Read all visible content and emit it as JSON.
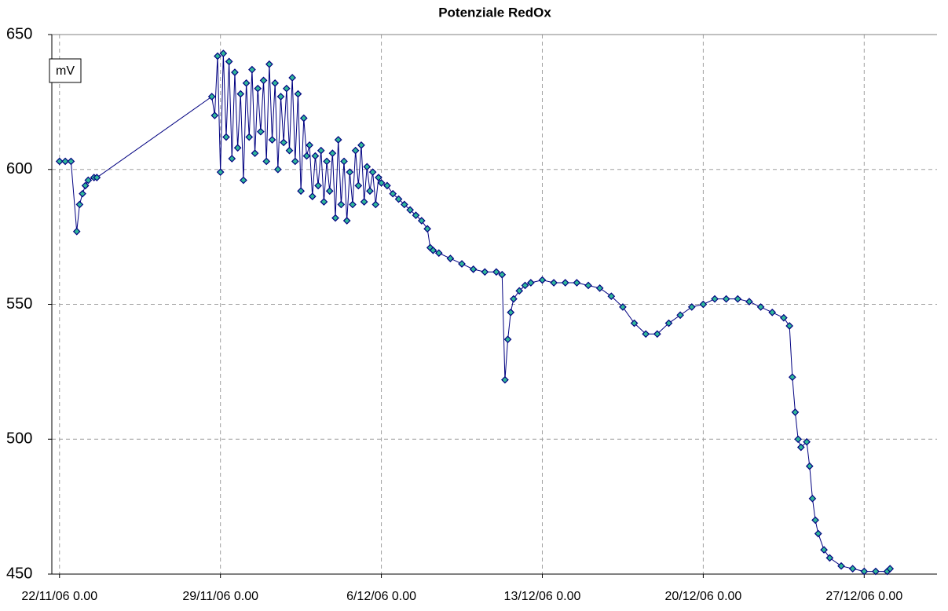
{
  "chart_data": {
    "type": "line",
    "title": "Potenziale RedOx",
    "y_label": "mV",
    "x": [
      "2006-11-22T00:00",
      "2006-11-22T06:00",
      "2006-11-22T12:00",
      "2006-11-22T18:00",
      "2006-11-22T21:00",
      "2006-11-23T00:00",
      "2006-11-23T03:00",
      "2006-11-23T06:00",
      "2006-11-23T12:00",
      "2006-11-23T15:00",
      "2006-11-28T15:00",
      "2006-11-28T18:00",
      "2006-11-28T21:00",
      "2006-11-29T00:00",
      "2006-11-29T03:00",
      "2006-11-29T06:00",
      "2006-11-29T09:00",
      "2006-11-29T12:00",
      "2006-11-29T15:00",
      "2006-11-29T18:00",
      "2006-11-29T21:00",
      "2006-11-30T00:00",
      "2006-11-30T03:00",
      "2006-11-30T06:00",
      "2006-11-30T09:00",
      "2006-11-30T12:00",
      "2006-11-30T15:00",
      "2006-11-30T18:00",
      "2006-11-30T21:00",
      "2006-12-01T00:00",
      "2006-12-01T03:00",
      "2006-12-01T06:00",
      "2006-12-01T09:00",
      "2006-12-01T12:00",
      "2006-12-01T15:00",
      "2006-12-01T18:00",
      "2006-12-01T21:00",
      "2006-12-02T00:00",
      "2006-12-02T03:00",
      "2006-12-02T06:00",
      "2006-12-02T09:00",
      "2006-12-02T12:00",
      "2006-12-02T15:00",
      "2006-12-02T18:00",
      "2006-12-02T21:00",
      "2006-12-03T00:00",
      "2006-12-03T03:00",
      "2006-12-03T06:00",
      "2006-12-03T09:00",
      "2006-12-03T12:00",
      "2006-12-03T15:00",
      "2006-12-03T18:00",
      "2006-12-03T21:00",
      "2006-12-04T00:00",
      "2006-12-04T03:00",
      "2006-12-04T06:00",
      "2006-12-04T09:00",
      "2006-12-04T12:00",
      "2006-12-04T15:00",
      "2006-12-04T18:00",
      "2006-12-04T21:00",
      "2006-12-05T00:00",
      "2006-12-05T03:00",
      "2006-12-05T06:00",
      "2006-12-05T09:00",
      "2006-12-05T12:00",
      "2006-12-05T15:00",
      "2006-12-05T18:00",
      "2006-12-05T21:00",
      "2006-12-06T00:00",
      "2006-12-06T06:00",
      "2006-12-06T12:00",
      "2006-12-06T18:00",
      "2006-12-07T00:00",
      "2006-12-07T06:00",
      "2006-12-07T12:00",
      "2006-12-07T18:00",
      "2006-12-08T00:00",
      "2006-12-08T03:00",
      "2006-12-08T06:00",
      "2006-12-08T12:00",
      "2006-12-09T00:00",
      "2006-12-09T12:00",
      "2006-12-10T00:00",
      "2006-12-10T12:00",
      "2006-12-11T00:00",
      "2006-12-11T06:00",
      "2006-12-11T09:00",
      "2006-12-11T12:00",
      "2006-12-11T15:00",
      "2006-12-11T18:00",
      "2006-12-12T00:00",
      "2006-12-12T06:00",
      "2006-12-12T12:00",
      "2006-12-13T00:00",
      "2006-12-13T12:00",
      "2006-12-14T00:00",
      "2006-12-14T12:00",
      "2006-12-15T00:00",
      "2006-12-15T12:00",
      "2006-12-16T00:00",
      "2006-12-16T12:00",
      "2006-12-17T00:00",
      "2006-12-17T12:00",
      "2006-12-18T00:00",
      "2006-12-18T12:00",
      "2006-12-19T00:00",
      "2006-12-19T12:00",
      "2006-12-20T00:00",
      "2006-12-20T12:00",
      "2006-12-21T00:00",
      "2006-12-21T12:00",
      "2006-12-22T00:00",
      "2006-12-22T12:00",
      "2006-12-23T00:00",
      "2006-12-23T12:00",
      "2006-12-23T18:00",
      "2006-12-23T21:00",
      "2006-12-24T00:00",
      "2006-12-24T03:00",
      "2006-12-24T06:00",
      "2006-12-24T12:00",
      "2006-12-24T15:00",
      "2006-12-24T18:00",
      "2006-12-24T21:00",
      "2006-12-25T00:00",
      "2006-12-25T06:00",
      "2006-12-25T12:00",
      "2006-12-26T00:00",
      "2006-12-26T12:00",
      "2006-12-27T00:00",
      "2006-12-27T12:00",
      "2006-12-28T00:00",
      "2006-12-28T03:00"
    ],
    "series": [
      {
        "name": "mV",
        "color": "#000080",
        "marker_color": "#30b89a",
        "values": [
          603,
          603,
          603,
          577,
          587,
          591,
          594,
          596,
          597,
          597,
          627,
          620,
          642,
          599,
          643,
          612,
          640,
          604,
          636,
          608,
          628,
          596,
          632,
          612,
          637,
          606,
          630,
          614,
          633,
          603,
          639,
          611,
          632,
          600,
          627,
          610,
          630,
          607,
          634,
          603,
          628,
          592,
          619,
          605,
          609,
          590,
          605,
          594,
          607,
          588,
          603,
          592,
          606,
          582,
          611,
          587,
          603,
          581,
          599,
          587,
          607,
          594,
          609,
          588,
          601,
          592,
          599,
          587,
          597,
          595,
          594,
          591,
          589,
          587,
          585,
          583,
          581,
          578,
          571,
          570,
          569,
          567,
          565,
          563,
          562,
          562,
          561,
          522,
          537,
          547,
          552,
          555,
          557,
          558,
          559,
          558,
          558,
          558,
          557,
          556,
          553,
          549,
          543,
          539,
          539,
          543,
          546,
          549,
          550,
          552,
          552,
          552,
          551,
          549,
          547,
          545,
          542,
          523,
          510,
          500,
          497,
          499,
          490,
          478,
          470,
          465,
          459,
          456,
          453,
          452,
          451,
          451,
          451,
          452
        ]
      }
    ],
    "xlim": [
      "2006-11-21T16:00",
      "2006-12-30T04:00"
    ],
    "xticks": [
      {
        "value": "2006-11-22T00:00",
        "label": "22/11/06 0.00"
      },
      {
        "value": "2006-11-29T00:00",
        "label": "29/11/06 0.00"
      },
      {
        "value": "2006-12-06T00:00",
        "label": "6/12/06 0.00"
      },
      {
        "value": "2006-12-13T00:00",
        "label": "13/12/06 0.00"
      },
      {
        "value": "2006-12-20T00:00",
        "label": "20/12/06 0.00"
      },
      {
        "value": "2006-12-27T00:00",
        "label": "27/12/06 0.00"
      }
    ],
    "ylim": [
      450,
      650
    ],
    "yticks": [
      450,
      500,
      550,
      600,
      650
    ],
    "grid": true
  }
}
